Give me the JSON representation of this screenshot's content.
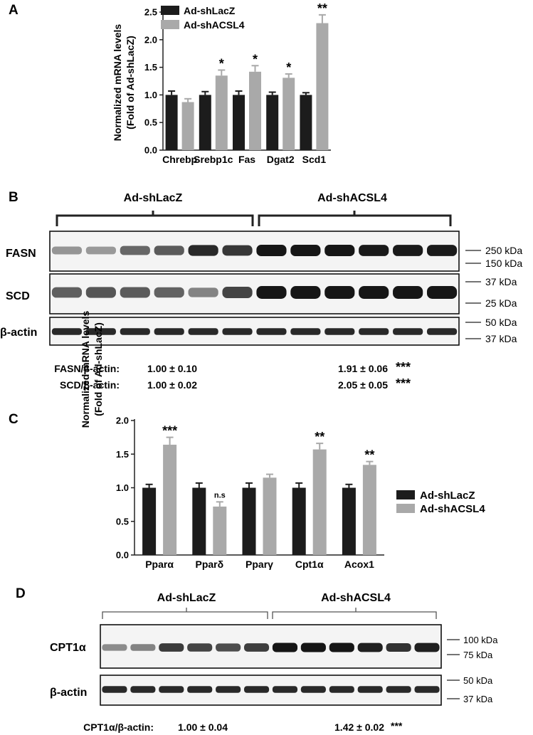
{
  "colors": {
    "shLacZ": "#1c1c1c",
    "shACSL4": "#a9a9a9",
    "axis": "#222222",
    "blot_bg": "#f4f4f4"
  },
  "chart_data": [
    {
      "panel": "A",
      "type": "bar",
      "ylabel_lines": [
        "Normalized mRNA levels",
        "(Fold of Ad-shLacZ)"
      ],
      "categories": [
        "Chrebp",
        "Srebp1c",
        "Fas",
        "Dgat2",
        "Scd1"
      ],
      "ylim": [
        0,
        2.5
      ],
      "yticks": [
        "0.0",
        "0.5",
        "1.0",
        "1.5",
        "2.0",
        "2.5"
      ],
      "series": [
        {
          "name": "Ad-shLacZ",
          "values": [
            1.0,
            1.0,
            1.0,
            1.0,
            1.0
          ],
          "errors": [
            0.07,
            0.06,
            0.07,
            0.05,
            0.04
          ]
        },
        {
          "name": "Ad-shACSL4",
          "values": [
            0.87,
            1.35,
            1.42,
            1.31,
            2.3
          ],
          "errors": [
            0.06,
            0.1,
            0.11,
            0.07,
            0.15
          ]
        }
      ],
      "significance": [
        "",
        "*",
        "*",
        "*",
        "**"
      ],
      "legend_position": "top-left"
    },
    {
      "panel": "C",
      "type": "bar",
      "ylabel_lines": [
        "Normalized mRNA levels",
        "(Fold of Ad-shLacZ)"
      ],
      "categories": [
        "Pparα",
        "Pparδ",
        "Pparγ",
        "Cpt1α",
        "Acox1"
      ],
      "ylim": [
        0,
        2.0
      ],
      "yticks": [
        "0.0",
        "0.5",
        "1.0",
        "1.5",
        "2.0"
      ],
      "series": [
        {
          "name": "Ad-shLacZ",
          "values": [
            1.0,
            1.0,
            1.0,
            1.0,
            1.0
          ],
          "errors": [
            0.05,
            0.07,
            0.07,
            0.07,
            0.05
          ]
        },
        {
          "name": "Ad-shACSL4",
          "values": [
            1.64,
            0.72,
            1.15,
            1.57,
            1.34
          ],
          "errors": [
            0.11,
            0.07,
            0.05,
            0.09,
            0.05
          ]
        }
      ],
      "significance": [
        "***",
        "n.s",
        "",
        "**",
        "**"
      ],
      "legend_position": "right"
    }
  ],
  "panels": {
    "A": {
      "label": "A"
    },
    "B": {
      "label": "B",
      "group_left": "Ad-shLacZ",
      "group_right": "Ad-shACSL4",
      "blots": [
        {
          "label": "FASN",
          "intensities": [
            0.3,
            0.28,
            0.55,
            0.62,
            0.9,
            0.82,
            1.0,
            1.0,
            1.0,
            0.98,
            0.98,
            0.98
          ],
          "markers": [
            "250 kDa",
            "150 kDa"
          ]
        },
        {
          "label": "SCD",
          "intensities": [
            0.6,
            0.65,
            0.62,
            0.58,
            0.4,
            0.75,
            1.0,
            1.0,
            1.0,
            1.0,
            1.0,
            1.0
          ],
          "markers": [
            "37 kDa",
            "25 kDa"
          ]
        },
        {
          "label": "β-actin",
          "intensities": [
            0.9,
            0.9,
            0.9,
            0.9,
            0.9,
            0.9,
            0.9,
            0.9,
            0.9,
            0.9,
            0.9,
            0.9
          ],
          "markers": [
            "50 kDa",
            "37 kDa"
          ]
        }
      ],
      "quant": [
        {
          "label": "FASN/β-actin:",
          "left": "1.00 ± 0.10",
          "right": "1.91 ± 0.06",
          "sig": "***"
        },
        {
          "label": "SCD/β-actin:",
          "left": "1.00 ± 0.02",
          "right": "2.05 ± 0.05",
          "sig": "***"
        }
      ]
    },
    "C": {
      "label": "C"
    },
    "D": {
      "label": "D",
      "group_left": "Ad-shLacZ",
      "group_right": "Ad-shACSL4",
      "blots": [
        {
          "label": "CPT1α",
          "intensities": [
            0.35,
            0.4,
            0.8,
            0.75,
            0.7,
            0.78,
            1.0,
            1.0,
            1.0,
            0.95,
            0.85,
            0.95
          ],
          "markers": [
            "100 kDa",
            "75 kDa"
          ]
        },
        {
          "label": "β-actin",
          "intensities": [
            0.9,
            0.9,
            0.9,
            0.9,
            0.9,
            0.9,
            0.9,
            0.9,
            0.9,
            0.9,
            0.9,
            0.9
          ],
          "markers": [
            "50 kDa",
            "37 kDa"
          ]
        }
      ],
      "quant": [
        {
          "label": "CPT1α/β-actin:",
          "left": "1.00 ± 0.04",
          "right": "1.42 ± 0.02",
          "sig": "***"
        }
      ]
    }
  }
}
